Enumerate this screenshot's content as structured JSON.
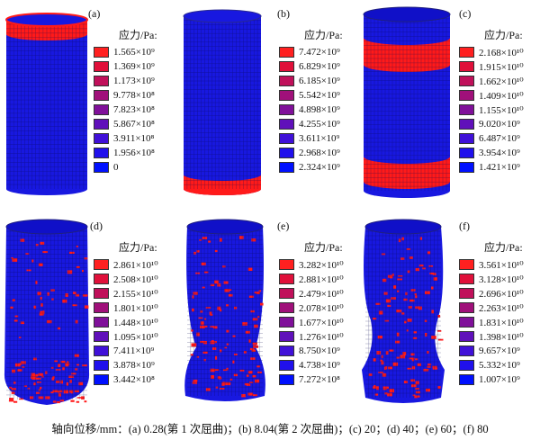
{
  "legend_title": "应力/Pa:",
  "caption": "轴向位移/mm：(a) 0.28(第 1 次屈曲)；(b) 8.04(第 2 次屈曲)；(c) 20；(d) 40；(e) 60；(f) 80",
  "panels": [
    {
      "label": "(a)",
      "values": [
        "1.565×10⁹",
        "1.369×10⁹",
        "1.173×10⁹",
        "9.778×10⁸",
        "7.823×10⁸",
        "5.867×10⁸",
        "3.911×10⁸",
        "1.956×10⁸",
        "0"
      ]
    },
    {
      "label": "(b)",
      "values": [
        "7.472×10⁹",
        "6.829×10⁹",
        "6.185×10⁹",
        "5.542×10⁹",
        "4.898×10⁹",
        "4.255×10⁹",
        "3.611×10⁹",
        "2.968×10⁹",
        "2.324×10⁹"
      ]
    },
    {
      "label": "(c)",
      "values": [
        "2.168×10¹⁰",
        "1.915×10¹⁰",
        "1.662×10¹⁰",
        "1.409×10¹⁰",
        "1.155×10¹⁰",
        "9.020×10⁹",
        "6.487×10⁹",
        "3.954×10⁹",
        "1.421×10⁹"
      ]
    },
    {
      "label": "(d)",
      "values": [
        "2.861×10¹⁰",
        "2.508×10¹⁰",
        "2.155×10¹⁰",
        "1.801×10¹⁰",
        "1.448×10¹⁰",
        "1.095×10¹⁰",
        "7.411×10⁹",
        "3.878×10⁹",
        "3.442×10⁸"
      ]
    },
    {
      "label": "(e)",
      "values": [
        "3.282×10¹⁰",
        "2.881×10¹⁰",
        "2.479×10¹⁰",
        "2.078×10¹⁰",
        "1.677×10¹⁰",
        "1.276×10¹⁰",
        "8.750×10⁹",
        "4.738×10⁹",
        "7.272×10⁸"
      ]
    },
    {
      "label": "(f)",
      "values": [
        "3.561×10¹⁰",
        "3.128×10¹⁰",
        "2.696×10¹⁰",
        "2.263×10¹⁰",
        "1.831×10¹⁰",
        "1.398×10¹⁰",
        "9.657×10⁹",
        "5.332×10⁹",
        "1.007×10⁹"
      ]
    }
  ],
  "legend_colors": [
    "#ff2020",
    "#e0103a",
    "#c0105a",
    "#a0107a",
    "#80109a",
    "#6010ba",
    "#4010d8",
    "#2010ec",
    "#0010ff"
  ],
  "colors": {
    "base": "#1818e0",
    "stress": "#ff1a1a",
    "mesh": "#0a0a50"
  }
}
